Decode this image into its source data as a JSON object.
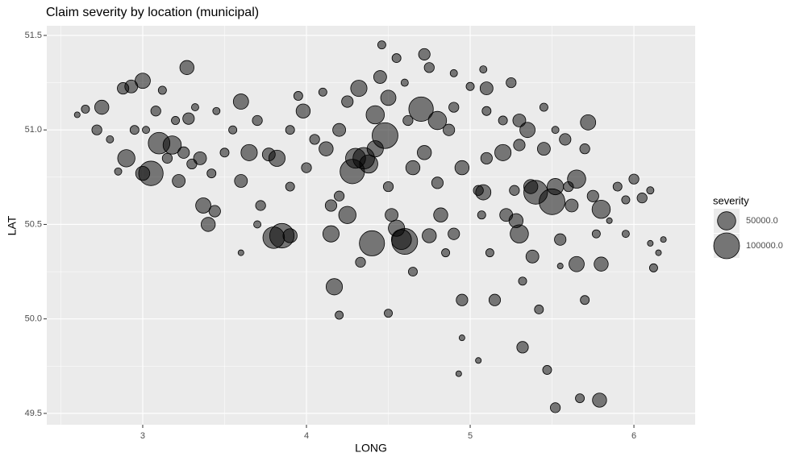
{
  "chart_data": {
    "type": "scatter",
    "title": "Claim severity by location (municipal)",
    "x_label": "LONG",
    "y_label": "LAT",
    "xlim": [
      2.414,
      6.374
    ],
    "ylim": [
      49.44,
      51.551
    ],
    "xticks": [
      3,
      4,
      5,
      6
    ],
    "yticks": [
      49.5,
      {
        "value": 50,
        "label": "50.0"
      },
      50.5,
      {
        "value": 51,
        "label": "51.0"
      },
      51.5
    ],
    "x_minor_ticks": [
      2.5,
      3.5,
      4.5,
      5.5
    ],
    "y_minor_ticks": [
      49.75,
      50.25,
      50.75,
      51.25
    ],
    "grid": true,
    "legend": {
      "title": "severity",
      "position": "right",
      "entries": [
        {
          "value": 50000,
          "label": "50000.0"
        },
        {
          "value": 100000,
          "label": "100000.0"
        }
      ]
    },
    "series": [
      {
        "color": "#000000",
        "alpha": 0.5,
        "x": [
          2.6,
          2.65,
          2.72,
          2.75,
          2.8,
          2.85,
          2.88,
          2.9,
          2.93,
          2.95,
          3.0,
          3.0,
          3.02,
          3.05,
          3.08,
          3.1,
          3.12,
          3.15,
          3.18,
          3.2,
          3.22,
          3.25,
          3.27,
          3.28,
          3.3,
          3.32,
          3.35,
          3.37,
          3.4,
          3.42,
          3.44,
          3.45,
          3.5,
          3.55,
          3.6,
          3.6,
          3.65,
          3.7,
          3.72,
          3.77,
          3.8,
          3.82,
          3.85,
          3.9,
          3.9,
          3.95,
          3.98,
          3.9,
          4.0,
          3.7,
          3.6,
          4.05,
          4.1,
          4.12,
          4.15,
          4.15,
          4.17,
          4.2,
          4.2,
          4.2,
          4.25,
          4.25,
          4.28,
          4.3,
          4.32,
          4.33,
          4.35,
          4.38,
          4.4,
          4.42,
          4.42,
          4.45,
          4.46,
          4.48,
          4.5,
          4.5,
          4.5,
          4.52,
          4.55,
          4.58,
          4.6,
          4.62,
          4.65,
          4.65,
          4.7,
          4.72,
          4.75,
          4.75,
          4.8,
          4.8,
          4.82,
          4.85,
          4.87,
          4.9,
          4.9,
          4.95,
          4.95,
          4.95,
          4.93,
          5.0,
          5.05,
          5.07,
          5.05,
          5.08,
          5.1,
          5.1,
          5.12,
          5.15,
          5.2,
          5.2,
          5.22,
          5.25,
          5.27,
          5.28,
          5.3,
          5.3,
          5.32,
          5.32,
          5.35,
          5.37,
          5.38,
          5.4,
          5.42,
          5.45,
          5.47,
          5.5,
          5.52,
          5.52,
          5.55,
          5.55,
          5.58,
          5.6,
          5.62,
          5.65,
          5.65,
          5.67,
          5.7,
          5.7,
          5.72,
          5.75,
          5.77,
          5.79,
          5.8,
          5.8,
          5.85,
          5.9,
          5.95,
          5.95,
          6.0,
          6.05,
          6.1,
          6.1,
          6.12,
          6.15,
          6.18,
          5.3,
          5.45,
          5.52,
          4.72,
          4.55,
          4.6,
          4.9,
          5.08,
          5.1
        ],
        "y": [
          51.08,
          51.11,
          51.0,
          51.12,
          50.95,
          50.78,
          51.22,
          50.85,
          51.23,
          51.0,
          51.26,
          50.77,
          51.0,
          50.77,
          51.1,
          50.93,
          51.21,
          50.85,
          50.92,
          51.05,
          50.73,
          50.88,
          51.33,
          51.06,
          50.82,
          51.12,
          50.85,
          50.6,
          50.5,
          50.77,
          50.57,
          51.1,
          50.88,
          51.0,
          50.73,
          51.15,
          50.88,
          51.05,
          50.6,
          50.87,
          50.43,
          50.85,
          50.44,
          50.44,
          51.0,
          51.18,
          51.1,
          50.7,
          50.8,
          50.5,
          50.35,
          50.95,
          51.2,
          50.9,
          50.6,
          50.45,
          50.17,
          51.0,
          50.65,
          50.02,
          51.15,
          50.55,
          50.78,
          50.85,
          51.22,
          50.3,
          50.85,
          50.82,
          50.4,
          51.08,
          50.9,
          51.28,
          51.45,
          50.97,
          51.17,
          50.7,
          50.03,
          50.55,
          50.48,
          50.42,
          50.41,
          51.05,
          50.25,
          50.8,
          51.11,
          50.88,
          51.33,
          50.44,
          51.05,
          50.72,
          50.55,
          50.35,
          51.0,
          51.12,
          50.45,
          50.8,
          50.1,
          49.9,
          49.71,
          51.23,
          50.68,
          50.55,
          49.78,
          50.67,
          51.1,
          50.85,
          50.35,
          50.1,
          50.88,
          51.05,
          50.55,
          51.25,
          50.68,
          50.52,
          50.45,
          51.05,
          50.2,
          49.85,
          51.0,
          50.7,
          50.33,
          50.67,
          50.05,
          50.9,
          49.73,
          50.62,
          50.7,
          49.53,
          50.42,
          50.28,
          50.95,
          50.7,
          50.6,
          50.74,
          50.29,
          49.58,
          50.1,
          50.9,
          51.04,
          50.65,
          50.45,
          49.57,
          50.29,
          50.58,
          50.52,
          50.7,
          50.63,
          50.45,
          50.74,
          50.64,
          50.68,
          50.4,
          50.27,
          50.35,
          50.42,
          50.92,
          51.12,
          51.0,
          51.4,
          51.38,
          51.25,
          51.3,
          51.32,
          51.22
        ],
        "size": [
          5000,
          10000,
          15000,
          30000,
          8000,
          8000,
          20000,
          45000,
          25000,
          12000,
          35000,
          30000,
          8000,
          90000,
          15000,
          70000,
          10000,
          15000,
          50000,
          10000,
          25000,
          20000,
          30000,
          20000,
          15000,
          8000,
          25000,
          35000,
          30000,
          12000,
          20000,
          8000,
          12000,
          10000,
          25000,
          35000,
          40000,
          15000,
          15000,
          25000,
          70000,
          40000,
          90000,
          30000,
          12000,
          12000,
          30000,
          12000,
          15000,
          8000,
          5000,
          15000,
          10000,
          30000,
          20000,
          40000,
          40000,
          25000,
          15000,
          10000,
          20000,
          45000,
          90000,
          60000,
          40000,
          15000,
          70000,
          50000,
          95000,
          50000,
          40000,
          25000,
          10000,
          100000,
          35000,
          15000,
          10000,
          25000,
          40000,
          60000,
          100000,
          15000,
          12000,
          30000,
          90000,
          30000,
          15000,
          30000,
          50000,
          20000,
          30000,
          10000,
          20000,
          15000,
          20000,
          30000,
          20000,
          5000,
          5000,
          10000,
          15000,
          10000,
          5000,
          35000,
          12000,
          20000,
          10000,
          20000,
          40000,
          12000,
          25000,
          15000,
          15000,
          30000,
          50000,
          25000,
          10000,
          20000,
          35000,
          30000,
          25000,
          85000,
          12000,
          25000,
          12000,
          100000,
          40000,
          15000,
          20000,
          5000,
          20000,
          15000,
          25000,
          50000,
          35000,
          12000,
          12000,
          15000,
          35000,
          20000,
          10000,
          30000,
          30000,
          50000,
          5000,
          12000,
          10000,
          8000,
          15000,
          15000,
          8000,
          5000,
          10000,
          5000,
          5000,
          20000,
          10000,
          8000,
          20000,
          12000,
          8000,
          8000,
          8000,
          25000
        ]
      }
    ]
  }
}
